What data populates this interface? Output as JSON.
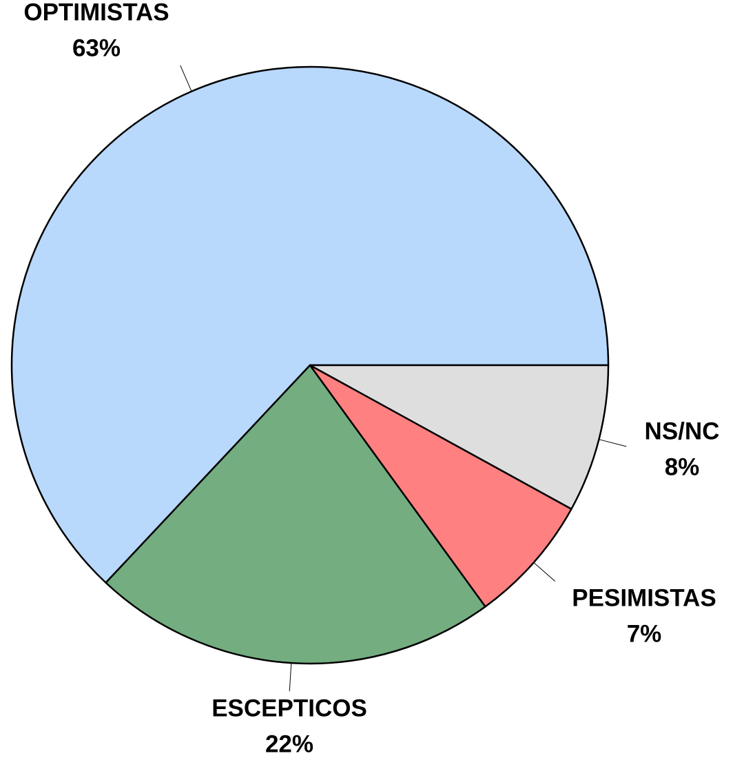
{
  "chart_data": {
    "type": "pie",
    "categories": [
      "OPTIMISTAS",
      "ESCEPTICOS",
      "PESIMISTAS",
      "NS/NC"
    ],
    "values": [
      63,
      22,
      7,
      8
    ],
    "value_labels": [
      "63%",
      "22%",
      "7%",
      "8%"
    ],
    "colors": [
      "#b8d8fc",
      "#73ad80",
      "#ff8080",
      "#dedede"
    ]
  }
}
